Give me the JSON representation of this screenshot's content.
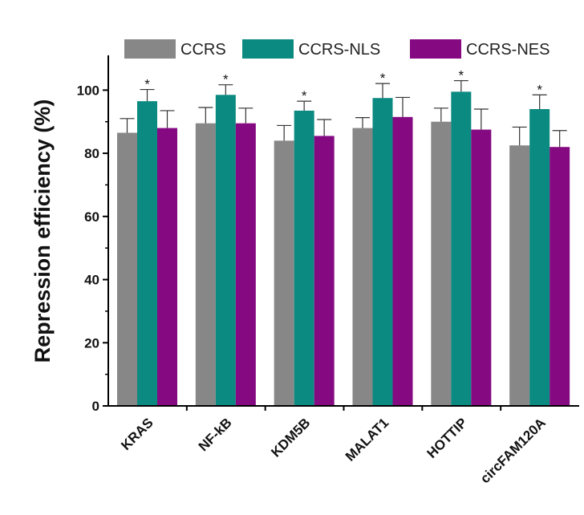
{
  "chart_data": {
    "type": "bar",
    "title": "",
    "xlabel": "",
    "ylabel": "Repression efficiency (%)",
    "ylim": [
      0,
      110
    ],
    "yticks": [
      0,
      20,
      40,
      60,
      80,
      100
    ],
    "categories": [
      "KRAS",
      "NF-kB",
      "KDM5B",
      "MALAT1",
      "HOTTIP",
      "circFAM120A"
    ],
    "series": [
      {
        "name": "CCRS",
        "color": "#878787",
        "values": [
          86.5,
          89.5,
          84,
          88,
          90,
          82.5
        ],
        "errors": [
          4.5,
          5,
          4.8,
          3.3,
          4.3,
          5.8
        ]
      },
      {
        "name": "CCRS-NLS",
        "color": "#0b8a81",
        "values": [
          96.5,
          98.5,
          93.5,
          97.5,
          99.5,
          94
        ],
        "errors": [
          3.7,
          3.2,
          3,
          4.6,
          3.5,
          4.5
        ]
      },
      {
        "name": "CCRS-NES",
        "color": "#850a82",
        "values": [
          88,
          89.5,
          85.5,
          91.5,
          87.5,
          82
        ],
        "errors": [
          5.5,
          4.8,
          5.2,
          6.2,
          6.5,
          5.2
        ]
      }
    ],
    "annotations": {
      "marker": "*",
      "series": "CCRS-NLS",
      "categories": [
        "KRAS",
        "NF-kB",
        "KDM5B",
        "MALAT1",
        "HOTTIP",
        "circFAM120A"
      ]
    },
    "legend": "top"
  }
}
